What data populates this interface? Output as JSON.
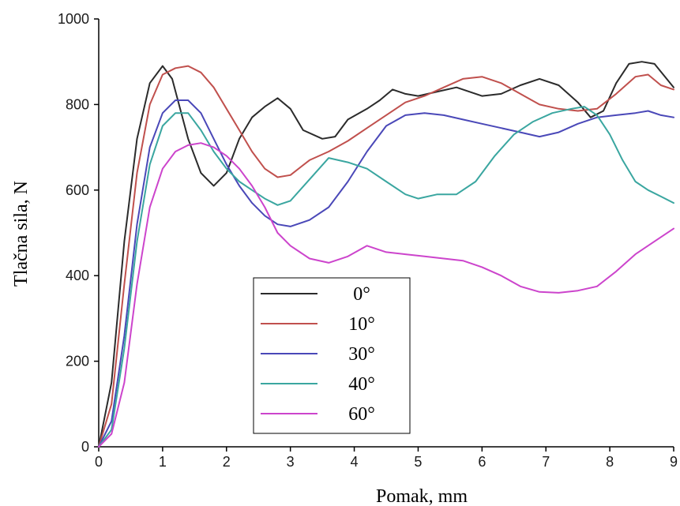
{
  "chart_data": {
    "type": "line",
    "title": "",
    "xlabel": "Pomak, mm",
    "ylabel": "Tlačna sila, N",
    "xlim": [
      0,
      9
    ],
    "ylim": [
      0,
      1000
    ],
    "x_ticks": [
      0,
      1,
      2,
      3,
      4,
      5,
      6,
      7,
      8,
      9
    ],
    "x_tick_labels": [
      "0",
      "1",
      "2",
      "3",
      "4",
      "5",
      "6",
      "7",
      "8",
      "9"
    ],
    "y_ticks": [
      0,
      200,
      400,
      600,
      800,
      1000
    ],
    "y_tick_labels": [
      "0",
      "200",
      "400",
      "600",
      "800",
      "1000"
    ],
    "grid": false,
    "legend_position": "bottom-center",
    "series": [
      {
        "name": "0°",
        "color": "#2b2b2b",
        "points": [
          [
            0,
            0
          ],
          [
            0.2,
            150
          ],
          [
            0.4,
            480
          ],
          [
            0.6,
            720
          ],
          [
            0.8,
            850
          ],
          [
            1.0,
            890
          ],
          [
            1.15,
            860
          ],
          [
            1.4,
            720
          ],
          [
            1.6,
            640
          ],
          [
            1.8,
            610
          ],
          [
            2.0,
            640
          ],
          [
            2.2,
            720
          ],
          [
            2.4,
            770
          ],
          [
            2.6,
            795
          ],
          [
            2.8,
            815
          ],
          [
            3.0,
            790
          ],
          [
            3.2,
            740
          ],
          [
            3.5,
            720
          ],
          [
            3.7,
            725
          ],
          [
            3.9,
            765
          ],
          [
            4.2,
            790
          ],
          [
            4.4,
            810
          ],
          [
            4.6,
            835
          ],
          [
            4.8,
            825
          ],
          [
            5.0,
            820
          ],
          [
            5.3,
            830
          ],
          [
            5.6,
            840
          ],
          [
            6.0,
            820
          ],
          [
            6.3,
            825
          ],
          [
            6.6,
            845
          ],
          [
            6.9,
            860
          ],
          [
            7.2,
            845
          ],
          [
            7.5,
            805
          ],
          [
            7.7,
            770
          ],
          [
            7.9,
            785
          ],
          [
            8.1,
            850
          ],
          [
            8.3,
            895
          ],
          [
            8.5,
            900
          ],
          [
            8.7,
            895
          ],
          [
            9.0,
            840
          ]
        ]
      },
      {
        "name": "10°",
        "color": "#c0504d",
        "points": [
          [
            0,
            0
          ],
          [
            0.2,
            100
          ],
          [
            0.4,
            380
          ],
          [
            0.6,
            640
          ],
          [
            0.8,
            800
          ],
          [
            1.0,
            870
          ],
          [
            1.2,
            885
          ],
          [
            1.4,
            890
          ],
          [
            1.6,
            875
          ],
          [
            1.8,
            840
          ],
          [
            2.0,
            790
          ],
          [
            2.2,
            740
          ],
          [
            2.4,
            690
          ],
          [
            2.6,
            650
          ],
          [
            2.8,
            630
          ],
          [
            3.0,
            635
          ],
          [
            3.3,
            670
          ],
          [
            3.6,
            690
          ],
          [
            3.9,
            715
          ],
          [
            4.2,
            745
          ],
          [
            4.5,
            775
          ],
          [
            4.8,
            805
          ],
          [
            5.1,
            820
          ],
          [
            5.4,
            840
          ],
          [
            5.7,
            860
          ],
          [
            6.0,
            865
          ],
          [
            6.3,
            850
          ],
          [
            6.6,
            825
          ],
          [
            6.9,
            800
          ],
          [
            7.2,
            790
          ],
          [
            7.5,
            785
          ],
          [
            7.8,
            790
          ],
          [
            8.1,
            825
          ],
          [
            8.4,
            865
          ],
          [
            8.6,
            870
          ],
          [
            8.8,
            845
          ],
          [
            9.0,
            835
          ]
        ]
      },
      {
        "name": "30°",
        "color": "#4a48b8",
        "points": [
          [
            0,
            0
          ],
          [
            0.2,
            60
          ],
          [
            0.4,
            260
          ],
          [
            0.6,
            520
          ],
          [
            0.8,
            700
          ],
          [
            1.0,
            780
          ],
          [
            1.2,
            810
          ],
          [
            1.4,
            810
          ],
          [
            1.6,
            780
          ],
          [
            1.8,
            720
          ],
          [
            2.0,
            660
          ],
          [
            2.2,
            610
          ],
          [
            2.4,
            570
          ],
          [
            2.6,
            540
          ],
          [
            2.8,
            520
          ],
          [
            3.0,
            515
          ],
          [
            3.3,
            530
          ],
          [
            3.6,
            560
          ],
          [
            3.9,
            620
          ],
          [
            4.2,
            690
          ],
          [
            4.5,
            750
          ],
          [
            4.8,
            775
          ],
          [
            5.1,
            780
          ],
          [
            5.4,
            775
          ],
          [
            5.7,
            765
          ],
          [
            6.0,
            755
          ],
          [
            6.3,
            745
          ],
          [
            6.6,
            735
          ],
          [
            6.9,
            725
          ],
          [
            7.2,
            735
          ],
          [
            7.5,
            755
          ],
          [
            7.8,
            770
          ],
          [
            8.1,
            775
          ],
          [
            8.4,
            780
          ],
          [
            8.6,
            785
          ],
          [
            8.8,
            775
          ],
          [
            9.0,
            770
          ]
        ]
      },
      {
        "name": "40°",
        "color": "#3aa6a0",
        "points": [
          [
            0,
            0
          ],
          [
            0.2,
            40
          ],
          [
            0.4,
            230
          ],
          [
            0.6,
            480
          ],
          [
            0.8,
            660
          ],
          [
            1.0,
            750
          ],
          [
            1.2,
            780
          ],
          [
            1.4,
            780
          ],
          [
            1.6,
            740
          ],
          [
            1.8,
            690
          ],
          [
            2.0,
            650
          ],
          [
            2.2,
            620
          ],
          [
            2.4,
            600
          ],
          [
            2.6,
            580
          ],
          [
            2.8,
            565
          ],
          [
            3.0,
            575
          ],
          [
            3.3,
            625
          ],
          [
            3.6,
            675
          ],
          [
            3.9,
            665
          ],
          [
            4.2,
            650
          ],
          [
            4.5,
            620
          ],
          [
            4.8,
            590
          ],
          [
            5.0,
            580
          ],
          [
            5.3,
            590
          ],
          [
            5.6,
            590
          ],
          [
            5.9,
            620
          ],
          [
            6.2,
            680
          ],
          [
            6.5,
            730
          ],
          [
            6.8,
            760
          ],
          [
            7.1,
            780
          ],
          [
            7.4,
            790
          ],
          [
            7.6,
            795
          ],
          [
            7.8,
            775
          ],
          [
            8.0,
            730
          ],
          [
            8.2,
            670
          ],
          [
            8.4,
            620
          ],
          [
            8.6,
            600
          ],
          [
            8.8,
            585
          ],
          [
            9.0,
            570
          ]
        ]
      },
      {
        "name": "60°",
        "color": "#cc44cc",
        "points": [
          [
            0,
            0
          ],
          [
            0.2,
            30
          ],
          [
            0.4,
            150
          ],
          [
            0.6,
            380
          ],
          [
            0.8,
            560
          ],
          [
            1.0,
            650
          ],
          [
            1.2,
            690
          ],
          [
            1.4,
            705
          ],
          [
            1.6,
            710
          ],
          [
            1.8,
            700
          ],
          [
            2.0,
            680
          ],
          [
            2.2,
            650
          ],
          [
            2.4,
            610
          ],
          [
            2.6,
            560
          ],
          [
            2.8,
            500
          ],
          [
            3.0,
            470
          ],
          [
            3.3,
            440
          ],
          [
            3.6,
            430
          ],
          [
            3.9,
            445
          ],
          [
            4.2,
            470
          ],
          [
            4.5,
            455
          ],
          [
            4.8,
            450
          ],
          [
            5.1,
            445
          ],
          [
            5.4,
            440
          ],
          [
            5.7,
            435
          ],
          [
            6.0,
            420
          ],
          [
            6.3,
            400
          ],
          [
            6.6,
            375
          ],
          [
            6.9,
            362
          ],
          [
            7.2,
            360
          ],
          [
            7.5,
            365
          ],
          [
            7.8,
            375
          ],
          [
            8.1,
            410
          ],
          [
            8.4,
            450
          ],
          [
            8.7,
            480
          ],
          [
            9.0,
            510
          ]
        ]
      }
    ]
  }
}
